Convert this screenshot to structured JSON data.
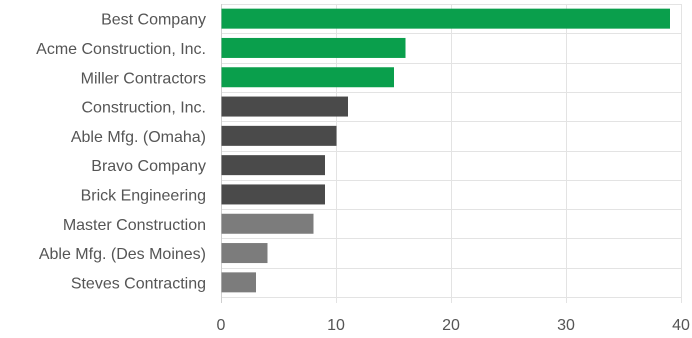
{
  "chart_data": {
    "type": "bar",
    "orientation": "horizontal",
    "categories": [
      "Best Company",
      "Acme Construction, Inc.",
      "Miller Contractors",
      "Construction, Inc.",
      "Able Mfg. (Omaha)",
      "Bravo Company",
      "Brick Engineering",
      "Master Construction",
      "Able Mfg. (Des Moines)",
      "Steves Contracting"
    ],
    "values": [
      39,
      16,
      15,
      11,
      10,
      9,
      9,
      8,
      4,
      3
    ],
    "bar_colors": [
      "#0a9f4c",
      "#0a9f4c",
      "#0a9f4c",
      "#4a4a4a",
      "#4a4a4a",
      "#4a4a4a",
      "#4a4a4a",
      "#7c7c7c",
      "#7c7c7c",
      "#7c7c7c"
    ],
    "xlim": [
      0,
      40
    ],
    "xticks": [
      "0",
      "10",
      "20",
      "30",
      "40"
    ],
    "grid": true,
    "title": "",
    "xlabel": "",
    "ylabel": ""
  }
}
